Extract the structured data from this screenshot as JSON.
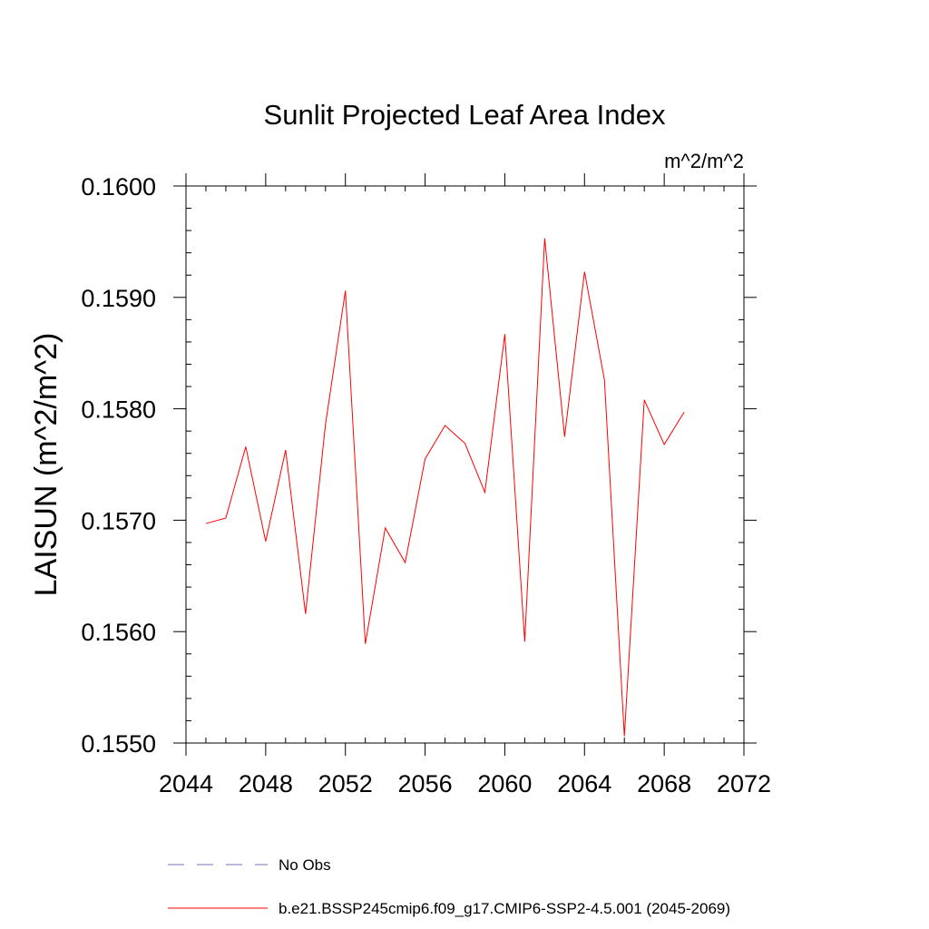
{
  "chart_data": {
    "type": "line",
    "title": "Sunlit Projected Leaf Area Index",
    "units": "m^2/m^2",
    "ylabel": "LAISUN  (m^2/m^2)",
    "xlabel": "",
    "xlim": [
      2044,
      2072
    ],
    "ylim": [
      0.155,
      0.16
    ],
    "x_ticks": [
      2044,
      2048,
      2052,
      2056,
      2060,
      2064,
      2068,
      2072
    ],
    "x_tick_labels": [
      "2044",
      "2048",
      "2052",
      "2056",
      "2060",
      "2064",
      "2068",
      "2072"
    ],
    "y_ticks": [
      0.155,
      0.156,
      0.157,
      0.158,
      0.159,
      0.16
    ],
    "y_tick_labels": [
      "0.1550",
      "0.1560",
      "0.1570",
      "0.1580",
      "0.1590",
      "0.1600"
    ],
    "series": [
      {
        "name": "b.e21.BSSP245cmip6.f09_g17.CMIP6-SSP2-4.5.001 (2045-2069)",
        "color": "#ff0000",
        "x": [
          2045,
          2046,
          2047,
          2048,
          2049,
          2050,
          2051,
          2052,
          2053,
          2054,
          2055,
          2056,
          2057,
          2058,
          2059,
          2060,
          2061,
          2062,
          2063,
          2064,
          2065,
          2066,
          2067,
          2068,
          2069
        ],
        "values": [
          0.15697,
          0.15702,
          0.15766,
          0.15681,
          0.15763,
          0.15616,
          0.15786,
          0.15906,
          0.15589,
          0.15693,
          0.15662,
          0.15755,
          0.15785,
          0.15769,
          0.15725,
          0.15867,
          0.15591,
          0.15953,
          0.15775,
          0.15923,
          0.15826,
          0.15506,
          0.15808,
          0.15768,
          0.15797
        ]
      }
    ],
    "legend": [
      {
        "label": "No Obs",
        "color": "#7a6fb8",
        "style": "dashed"
      },
      {
        "label": "b.e21.BSSP245cmip6.f09_g17.CMIP6-SSP2-4.5.001 (2045-2069)",
        "color": "#ff0000",
        "style": "solid"
      }
    ]
  }
}
